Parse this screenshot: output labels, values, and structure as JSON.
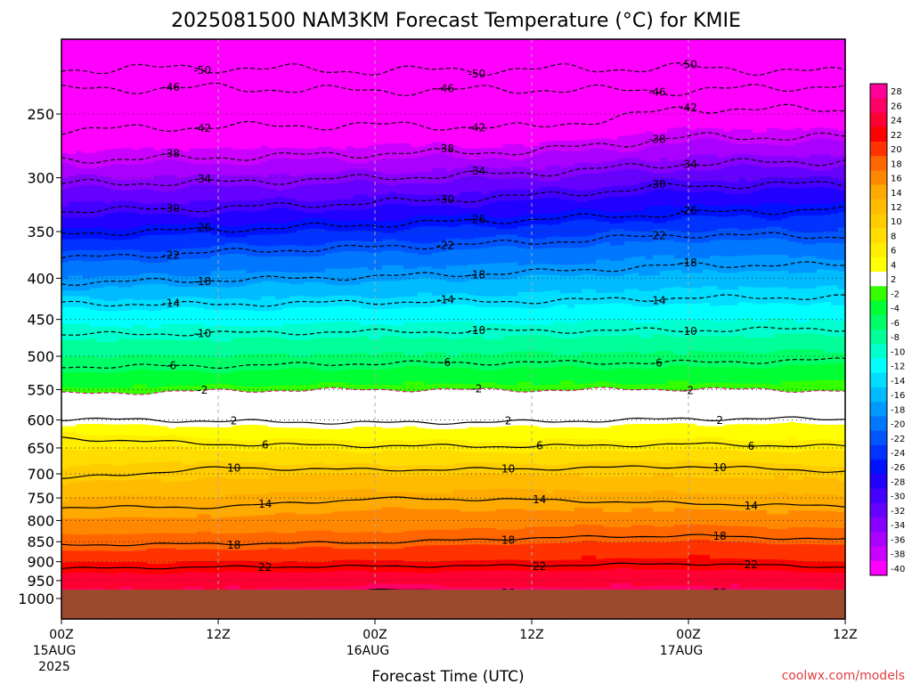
{
  "chart_data": {
    "type": "contour",
    "title": "2025081500 NAM3KM Forecast Temperature (°C) for KMIE",
    "xlabel": "Forecast Time (UTC)",
    "ylabel": "",
    "x_ticks": [
      {
        "hour": 0,
        "label": "00Z",
        "sub": [
          "15AUG",
          "2025"
        ]
      },
      {
        "hour": 12,
        "label": "12Z",
        "sub": []
      },
      {
        "hour": 24,
        "label": "00Z",
        "sub": [
          "16AUG"
        ]
      },
      {
        "hour": 36,
        "label": "12Z",
        "sub": []
      },
      {
        "hour": 48,
        "label": "00Z",
        "sub": [
          "17AUG"
        ]
      },
      {
        "hour": 60,
        "label": "12Z",
        "sub": []
      }
    ],
    "xlim": [
      0,
      60
    ],
    "y_ticks": [
      250,
      300,
      350,
      400,
      450,
      500,
      550,
      600,
      650,
      700,
      750,
      800,
      850,
      900,
      950,
      1000
    ],
    "ylim": [
      1040,
      200
    ],
    "colorbar_labels": [
      "28",
      "26",
      "24",
      "22",
      "20",
      "18",
      "16",
      "14",
      "12",
      "10",
      "8",
      "6",
      "4",
      "2",
      "-2",
      "-4",
      "-6",
      "-8",
      "-10",
      "-12",
      "-14",
      "-16",
      "-18",
      "-20",
      "-22",
      "-24",
      "-26",
      "-28",
      "-30",
      "-32",
      "-34",
      "-36",
      "-38",
      "-40"
    ],
    "colorbar_colors": [
      "#ff0099",
      "#ff0066",
      "#ff0033",
      "#ff0000",
      "#ff3300",
      "#ff6600",
      "#ff8800",
      "#ffaa00",
      "#ffbb00",
      "#ffcc00",
      "#ffdd00",
      "#ffee00",
      "#ffff00",
      "#ffffff",
      "#33ff00",
      "#00ff33",
      "#00ff66",
      "#00ff99",
      "#00ffcc",
      "#00ffff",
      "#00ddff",
      "#00bbff",
      "#0099ff",
      "#0077ff",
      "#0055ff",
      "#0033ff",
      "#0011ff",
      "#2200ff",
      "#4400ff",
      "#6600ff",
      "#8800ff",
      "#aa00ff",
      "#cc00ff",
      "#ff00ff"
    ],
    "contours": [
      {
        "value": -50,
        "label": "-50",
        "p": [
          220,
          219,
          221,
          220,
          219,
          222
        ]
      },
      {
        "value": -46,
        "label": "-46",
        "p": [
          233,
          232,
          234,
          233,
          234,
          230
        ]
      },
      {
        "value": -42,
        "label": "-42",
        "p": [
          262,
          259,
          258,
          260,
          246,
          247
        ]
      },
      {
        "value": -38,
        "label": "-38",
        "p": [
          285,
          283,
          280,
          278,
          267,
          267
        ]
      },
      {
        "value": -34,
        "label": "-34",
        "p": [
          305,
          304,
          300,
          296,
          288,
          286
        ]
      },
      {
        "value": -30,
        "label": "-30",
        "p": [
          330,
          327,
          322,
          316,
          307,
          305
        ]
      },
      {
        "value": -26,
        "label": "-26",
        "p": [
          352,
          348,
          343,
          338,
          332,
          328
        ]
      },
      {
        "value": -22,
        "label": "-22",
        "p": [
          378,
          371,
          366,
          361,
          353,
          355
        ]
      },
      {
        "value": -18,
        "label": "-18",
        "p": [
          405,
          402,
          398,
          393,
          385,
          385
        ]
      },
      {
        "value": -14,
        "label": "-14",
        "p": [
          430,
          431,
          428,
          427,
          423,
          422
        ]
      },
      {
        "value": -10,
        "label": "-10",
        "p": [
          470,
          468,
          466,
          465,
          464,
          462
        ]
      },
      {
        "value": -6,
        "label": "-6",
        "p": [
          515,
          514,
          510,
          509,
          509,
          505
        ]
      },
      {
        "value": -2,
        "label": "-2",
        "p": [
          557,
          552,
          550,
          551,
          549,
          552
        ]
      },
      {
        "value": 2,
        "label": "2",
        "p": [
          598,
          602,
          605,
          603,
          598,
          598
        ]
      },
      {
        "value": 6,
        "label": "6",
        "p": [
          632,
          643,
          646,
          647,
          643,
          647
        ]
      },
      {
        "value": 10,
        "label": "10",
        "p": [
          710,
          688,
          692,
          690,
          685,
          695
        ]
      },
      {
        "value": 14,
        "label": "14",
        "p": [
          770,
          770,
          751,
          754,
          762,
          768
        ]
      },
      {
        "value": 18,
        "label": "18",
        "p": [
          858,
          855,
          852,
          841,
          835,
          845
        ]
      },
      {
        "value": 22,
        "label": "22",
        "p": [
          918,
          914,
          912,
          910,
          905,
          914
        ]
      },
      {
        "value": 26,
        "label": "26",
        "p": [
          1000,
          992,
          975,
          985,
          980,
          988
        ]
      }
    ],
    "grid": true,
    "credit": "coolwx.com/models"
  }
}
